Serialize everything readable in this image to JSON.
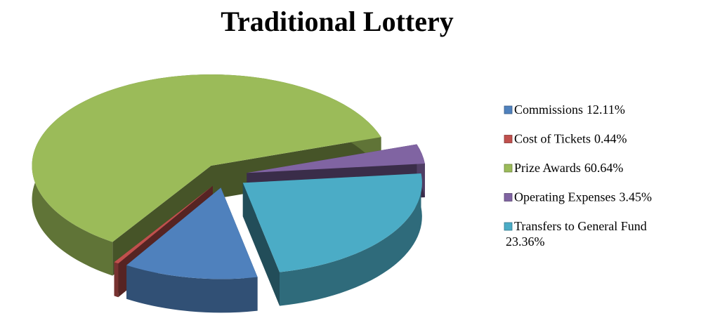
{
  "chart_data": {
    "type": "pie",
    "title": "Traditional Lottery",
    "categories": [
      "Commissions",
      "Cost of Tickets",
      "Prize Awards",
      "Operating Expenses",
      "Transfers to General Fund"
    ],
    "values": [
      12.11,
      0.44,
      60.64,
      3.45,
      23.36
    ],
    "value_labels": [
      "12.11%",
      "0.44%",
      "60.64%",
      "3.45%",
      "23.36%"
    ],
    "colors": [
      "#4f81bd",
      "#c0504d",
      "#9bbb59",
      "#8064a2",
      "#4bacc6"
    ],
    "legend": "right"
  }
}
